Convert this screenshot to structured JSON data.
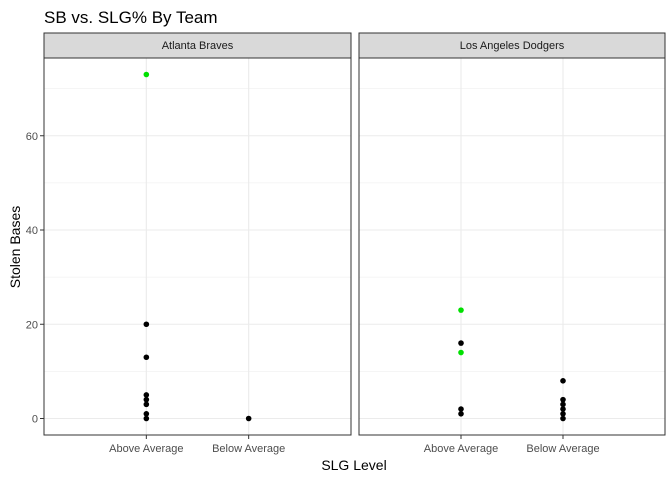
{
  "chart_data": {
    "type": "scatter",
    "title": "SB vs. SLG% By Team",
    "xlabel": "SLG Level",
    "ylabel": "Stolen Bases",
    "categories": [
      "Above Average",
      "Below Average"
    ],
    "ylim": [
      -3.5,
      76.5
    ],
    "yticks": [
      0,
      20,
      40,
      60
    ],
    "grid": true,
    "legend": "none",
    "colors": {
      "default": "#000000",
      "highlight": "#00e000",
      "strip": "#d9d9d9",
      "grid": "#ebebeb",
      "border": "#333333"
    },
    "panels": [
      {
        "name": "Atlanta Braves",
        "points": [
          {
            "x": "Above Average",
            "y": 73,
            "highlight": true
          },
          {
            "x": "Above Average",
            "y": 20,
            "highlight": false
          },
          {
            "x": "Above Average",
            "y": 13,
            "highlight": false
          },
          {
            "x": "Above Average",
            "y": 5,
            "highlight": false
          },
          {
            "x": "Above Average",
            "y": 4,
            "highlight": false
          },
          {
            "x": "Above Average",
            "y": 3,
            "highlight": false
          },
          {
            "x": "Above Average",
            "y": 1,
            "highlight": false
          },
          {
            "x": "Above Average",
            "y": 0,
            "highlight": false
          },
          {
            "x": "Below Average",
            "y": 0,
            "highlight": false
          }
        ]
      },
      {
        "name": "Los Angeles Dodgers",
        "points": [
          {
            "x": "Above Average",
            "y": 23,
            "highlight": true
          },
          {
            "x": "Above Average",
            "y": 16,
            "highlight": false
          },
          {
            "x": "Above Average",
            "y": 14,
            "highlight": true
          },
          {
            "x": "Above Average",
            "y": 2,
            "highlight": false
          },
          {
            "x": "Above Average",
            "y": 1,
            "highlight": false
          },
          {
            "x": "Below Average",
            "y": 8,
            "highlight": false
          },
          {
            "x": "Below Average",
            "y": 4,
            "highlight": false
          },
          {
            "x": "Below Average",
            "y": 3,
            "highlight": false
          },
          {
            "x": "Below Average",
            "y": 2,
            "highlight": false
          },
          {
            "x": "Below Average",
            "y": 1,
            "highlight": false
          },
          {
            "x": "Below Average",
            "y": 0,
            "highlight": false
          }
        ]
      }
    ]
  }
}
